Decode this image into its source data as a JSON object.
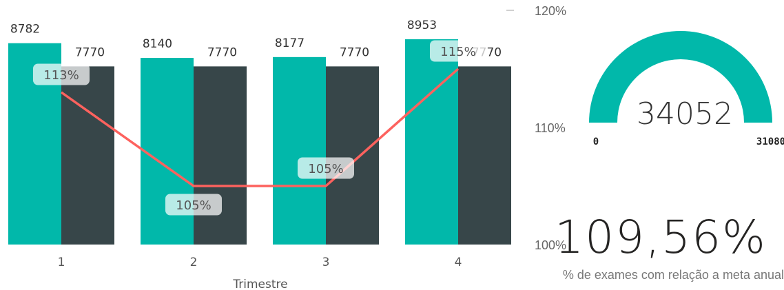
{
  "chart_data": [
    {
      "type": "bar",
      "categories": [
        "1",
        "2",
        "3",
        "4"
      ],
      "xlabel": "Trimestre",
      "series": [
        {
          "values": [
            8782,
            8140,
            8177,
            8953
          ],
          "color": "#01B8AA"
        },
        {
          "values": [
            7770,
            7770,
            7770,
            7770
          ],
          "color": "#374649"
        }
      ],
      "line_series": {
        "values": [
          113,
          105,
          105,
          115
        ],
        "labels": [
          "113%",
          "105%",
          "105%",
          "115%"
        ],
        "color": "#FD625E"
      },
      "y2_ticks": [
        "120%",
        "110%",
        "100%"
      ],
      "y2_range": [
        100,
        120
      ],
      "y_range": [
        0,
        8953
      ]
    },
    {
      "type": "gauge",
      "value": 34052,
      "value_label": "34052",
      "min_label": "0",
      "max_label": "31080",
      "min": 0,
      "max": 31080,
      "color": "#01B8AA"
    }
  ],
  "card": {
    "value": "109,56%",
    "label": "% de exames com relação a meta anual"
  }
}
